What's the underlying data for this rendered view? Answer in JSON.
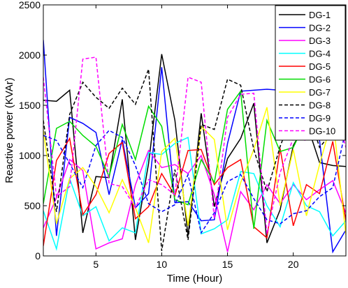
{
  "chart_data": {
    "type": "line",
    "xlabel": "Time (Hour)",
    "ylabel": "Reactive power (KVAr)",
    "xlim": [
      1,
      24
    ],
    "ylim": [
      0,
      2500
    ],
    "xticks": [
      5,
      10,
      15,
      20
    ],
    "yticks": [
      0,
      500,
      1000,
      1500,
      2000,
      2500
    ],
    "grid": false,
    "legend_position": "top-right",
    "x": [
      1,
      2,
      3,
      4,
      5,
      6,
      7,
      8,
      9,
      10,
      11,
      12,
      13,
      14,
      15,
      16,
      17,
      18,
      19,
      20,
      21,
      22,
      23,
      24
    ],
    "series": [
      {
        "name": "DG-1",
        "color": "#000000",
        "dash": "solid",
        "values": [
          1550,
          1540,
          1650,
          230,
          790,
          780,
          1560,
          160,
          920,
          2010,
          1350,
          200,
          1420,
          490,
          970,
          1170,
          1520,
          130,
          460,
          1100,
          1330,
          930,
          900,
          890
        ]
      },
      {
        "name": "DG-2",
        "color": "#0000ff",
        "dash": "solid",
        "values": [
          2150,
          200,
          1380,
          1320,
          1230,
          610,
          1160,
          480,
          620,
          1880,
          530,
          540,
          350,
          360,
          1120,
          1640,
          1650,
          1660,
          1650,
          1200,
          1250,
          1150,
          40,
          260
        ]
      },
      {
        "name": "DG-3",
        "color": "#ff00ff",
        "dash": "solid",
        "values": [
          280,
          580,
          960,
          850,
          70,
          130,
          170,
          710,
          1050,
          880,
          910,
          820,
          1000,
          610,
          40,
          640,
          460,
          710,
          520,
          710,
          560,
          660,
          750,
          430
        ]
      },
      {
        "name": "DG-4",
        "color": "#00ffff",
        "dash": "solid",
        "values": [
          450,
          70,
          770,
          400,
          490,
          150,
          280,
          230,
          1030,
          1010,
          1120,
          1180,
          220,
          270,
          360,
          840,
          820,
          500,
          290,
          730,
          500,
          440,
          200,
          350
        ]
      },
      {
        "name": "DG-5",
        "color": "#ff0000",
        "dash": "solid",
        "values": [
          100,
          950,
          1170,
          410,
          610,
          1020,
          1130,
          370,
          490,
          820,
          600,
          1050,
          1060,
          710,
          880,
          960,
          290,
          180,
          1070,
          300,
          710,
          620,
          1140,
          350
        ]
      },
      {
        "name": "DG-6",
        "color": "#00dd00",
        "dash": "solid",
        "values": [
          520,
          1270,
          1340,
          1200,
          1090,
          790,
          1310,
          960,
          1490,
          1290,
          560,
          510,
          960,
          730,
          1460,
          1640,
          270,
          1350,
          1040,
          1080,
          1360,
          1520,
          1380,
          1690
        ]
      },
      {
        "name": "DG-7",
        "color": "#ffff00",
        "dash": "solid",
        "values": [
          1250,
          320,
          770,
          880,
          690,
          430,
          760,
          480,
          130,
          1040,
          1170,
          300,
          1290,
          1160,
          260,
          730,
          1060,
          1480,
          500,
          1060,
          400,
          910,
          1380,
          210
        ]
      },
      {
        "name": "DG-8",
        "color": "#000000",
        "dash": "dashed",
        "values": [
          1350,
          440,
          1410,
          1730,
          1580,
          1470,
          1670,
          1510,
          1860,
          50,
          860,
          160,
          1310,
          1260,
          1760,
          1700,
          1060,
          640,
          1090,
          1440,
          1490,
          1080,
          1240,
          1400
        ]
      },
      {
        "name": "DG-9",
        "color": "#0000ff",
        "dash": "dashed",
        "values": [
          1200,
          1150,
          920,
          680,
          1100,
          1250,
          1180,
          900,
          520,
          440,
          510,
          810,
          230,
          430,
          740,
          810,
          570,
          360,
          320,
          420,
          450,
          590,
          680,
          1260
        ]
      },
      {
        "name": "DG-10",
        "color": "#ff00ff",
        "dash": "dashed",
        "values": [
          1780,
          590,
          690,
          1960,
          1980,
          720,
          690,
          480,
          760,
          710,
          610,
          1780,
          1730,
          370,
          1380,
          1610,
          1620,
          220,
          830,
          1170,
          1150,
          1440,
          1550,
          1080
        ]
      }
    ]
  }
}
